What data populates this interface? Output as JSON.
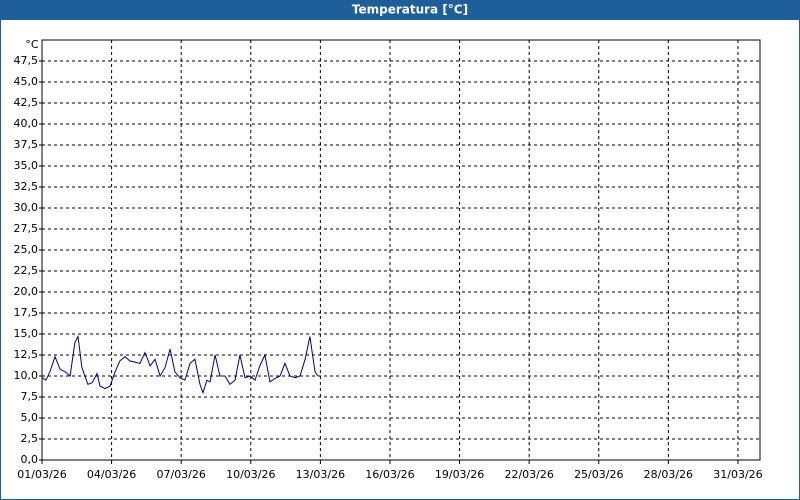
{
  "chart_data": {
    "type": "line",
    "title": "Temperatura [°C]",
    "y_unit": "°C",
    "x": [
      0,
      0.17,
      0.34,
      0.56,
      0.78,
      0.99,
      1.21,
      1.42,
      1.55,
      1.72,
      1.98,
      2.16,
      2.37,
      2.5,
      2.72,
      2.93,
      3.15,
      3.36,
      3.58,
      3.79,
      4.22,
      4.44,
      4.66,
      4.87,
      5.09,
      5.3,
      5.52,
      5.73,
      5.95,
      6.16,
      6.38,
      6.59,
      6.81,
      6.94,
      7.11,
      7.24,
      7.46,
      7.67,
      7.89,
      8.1,
      8.32,
      8.53,
      8.75,
      8.97,
      9.18,
      9.4,
      9.61,
      9.83,
      10.04,
      10.26,
      10.47,
      10.69,
      10.91,
      11.12,
      11.34,
      11.55,
      11.77,
      11.9
    ],
    "values": [
      9.8,
      9.5,
      10.5,
      12.3,
      10.8,
      10.5,
      10,
      14,
      14.7,
      11,
      9,
      9.2,
      10.3,
      8.8,
      8.5,
      8.8,
      10.5,
      11.8,
      12.3,
      11.8,
      11.5,
      12.8,
      11.2,
      12,
      10,
      11,
      13.2,
      10.5,
      9.8,
      9.5,
      11.5,
      12,
      9,
      8,
      9.5,
      9.3,
      12.5,
      10,
      10,
      9,
      9.5,
      12.5,
      9.8,
      10,
      9.5,
      11.3,
      12.5,
      9.3,
      9.7,
      10,
      11.5,
      10,
      9.8,
      10,
      12,
      14.7,
      10.5,
      10
    ],
    "color": "#00008b",
    "xlim": [
      0,
      30.95
    ],
    "xticks": [
      {
        "value": 0,
        "label": "01/03/26"
      },
      {
        "value": 3,
        "label": "04/03/26"
      },
      {
        "value": 6,
        "label": "07/03/26"
      },
      {
        "value": 9,
        "label": "10/03/26"
      },
      {
        "value": 12,
        "label": "13/03/26"
      },
      {
        "value": 15,
        "label": "16/03/26"
      },
      {
        "value": 18,
        "label": "19/03/26"
      },
      {
        "value": 21,
        "label": "22/03/26"
      },
      {
        "value": 24,
        "label": "25/03/26"
      },
      {
        "value": 27,
        "label": "28/03/26"
      },
      {
        "value": 30,
        "label": "31/03/26"
      }
    ],
    "ylim": [
      0,
      50
    ],
    "yticks": [
      {
        "value": 0,
        "label": "0,0"
      },
      {
        "value": 2.5,
        "label": "2,5"
      },
      {
        "value": 5,
        "label": "5,0"
      },
      {
        "value": 7.5,
        "label": "7,5"
      },
      {
        "value": 10,
        "label": "10,0"
      },
      {
        "value": 12.5,
        "label": "12,5"
      },
      {
        "value": 15,
        "label": "15,0"
      },
      {
        "value": 17.5,
        "label": "17,5"
      },
      {
        "value": 20,
        "label": "20,0"
      },
      {
        "value": 22.5,
        "label": "22,5"
      },
      {
        "value": 25,
        "label": "25,0"
      },
      {
        "value": 27.5,
        "label": "27,5"
      },
      {
        "value": 30,
        "label": "30,0"
      },
      {
        "value": 32.5,
        "label": "32,5"
      },
      {
        "value": 35,
        "label": "35,0"
      },
      {
        "value": 37.5,
        "label": "37,5"
      },
      {
        "value": 40,
        "label": "40,0"
      },
      {
        "value": 42.5,
        "label": "42,5"
      },
      {
        "value": 45,
        "label": "45,0"
      },
      {
        "value": 47.5,
        "label": "47,5"
      }
    ],
    "grid": true
  }
}
